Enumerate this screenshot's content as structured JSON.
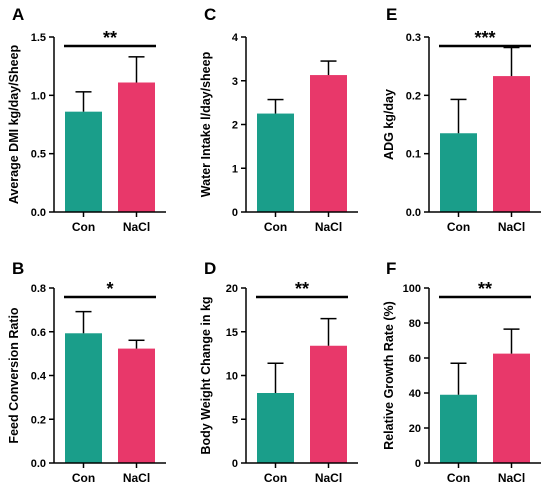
{
  "colors": {
    "con": "#1a9e8a",
    "nacl": "#e8386a",
    "axis": "#000000"
  },
  "chart_data": [
    {
      "panel": "A",
      "type": "bar",
      "categories": [
        "Con",
        "NaCl"
      ],
      "values": [
        0.86,
        1.11
      ],
      "errors": [
        0.17,
        0.22
      ],
      "ylabel": "Average DMI kg/day/Sheep",
      "ylim": [
        0,
        1.5
      ],
      "yticks": [
        0.0,
        0.5,
        1.0,
        1.5
      ],
      "ytick_labels": [
        "0.0",
        "0.5",
        "1.0",
        "1.5"
      ],
      "significance": "**"
    },
    {
      "panel": "C",
      "type": "bar",
      "categories": [
        "Con",
        "NaCl"
      ],
      "values": [
        2.25,
        3.13
      ],
      "errors": [
        0.32,
        0.32
      ],
      "ylabel": "Water Intake l/day/sheep",
      "ylim": [
        0,
        4
      ],
      "yticks": [
        0,
        1,
        2,
        3,
        4
      ],
      "ytick_labels": [
        "0",
        "1",
        "2",
        "3",
        "4"
      ],
      "significance": ""
    },
    {
      "panel": "E",
      "type": "bar",
      "categories": [
        "Con",
        "NaCl"
      ],
      "values": [
        0.135,
        0.233
      ],
      "errors": [
        0.058,
        0.049
      ],
      "ylabel": "ADG kg/day",
      "ylim": [
        0,
        0.3
      ],
      "yticks": [
        0.0,
        0.1,
        0.2,
        0.3
      ],
      "ytick_labels": [
        "0.0",
        "0.1",
        "0.2",
        "0.3"
      ],
      "significance": "***"
    },
    {
      "panel": "B",
      "type": "bar",
      "categories": [
        "Con",
        "NaCl"
      ],
      "values": [
        0.593,
        0.523
      ],
      "errors": [
        0.099,
        0.038
      ],
      "ylabel": "Feed Conversion Ratio",
      "ylim": [
        0,
        0.8
      ],
      "yticks": [
        0.0,
        0.2,
        0.4,
        0.6,
        0.8
      ],
      "ytick_labels": [
        "0.0",
        "0.2",
        "0.4",
        "0.6",
        "0.8"
      ],
      "significance": "*"
    },
    {
      "panel": "D",
      "type": "bar",
      "categories": [
        "Con",
        "NaCl"
      ],
      "values": [
        8.0,
        13.4
      ],
      "errors": [
        3.4,
        3.1
      ],
      "ylabel": "Body Weight Change  in kg",
      "ylim": [
        0,
        20
      ],
      "yticks": [
        0,
        5,
        10,
        15,
        20
      ],
      "ytick_labels": [
        "0",
        "5",
        "10",
        "15",
        "20"
      ],
      "significance": "**"
    },
    {
      "panel": "F",
      "type": "bar",
      "categories": [
        "Con",
        "NaCl"
      ],
      "values": [
        39,
        62.5
      ],
      "errors": [
        18,
        14
      ],
      "ylabel": "Relative Growth Rate  (%)",
      "ylim": [
        0,
        100
      ],
      "yticks": [
        0,
        20,
        40,
        60,
        80,
        100
      ],
      "ytick_labels": [
        "0",
        "20",
        "40",
        "60",
        "80",
        "100"
      ],
      "significance": "**"
    }
  ]
}
